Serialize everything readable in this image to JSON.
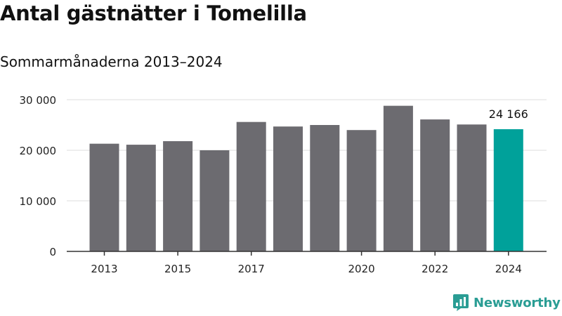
{
  "title": "Antal gästnätter i Tomelilla",
  "subtitle": "Sommarmånaderna 2013–2024",
  "brand": "Newsworthy",
  "colors": {
    "bar": "#6c6b70",
    "highlight": "#00a19a",
    "grid": "#dddddd",
    "axis": "#333333",
    "brand": "#2a9d94"
  },
  "chart_data": {
    "type": "bar",
    "title": "Antal gästnätter i Tomelilla",
    "subtitle": "Sommarmånaderna 2013–2024",
    "xlabel": "",
    "ylabel": "",
    "categories": [
      "2013",
      "2014",
      "2015",
      "2016",
      "2017",
      "2018",
      "2019",
      "2020",
      "2021",
      "2022",
      "2023",
      "2024"
    ],
    "x_tick_labels": [
      "2013",
      "",
      "2015",
      "",
      "2017",
      "",
      "",
      "2020",
      "",
      "2022",
      "",
      "2024"
    ],
    "values": [
      21300,
      21100,
      21800,
      20000,
      25600,
      24700,
      25000,
      24000,
      28800,
      26100,
      25100,
      24166
    ],
    "highlight_index": 11,
    "data_labels": [
      {
        "index": 11,
        "text": "24 166"
      }
    ],
    "ylim": [
      0,
      30000
    ],
    "y_ticks": [
      0,
      10000,
      20000,
      30000
    ],
    "y_tick_labels": [
      "0",
      "10 000",
      "20 000",
      "30 000"
    ],
    "grid": true,
    "legend": "none"
  }
}
